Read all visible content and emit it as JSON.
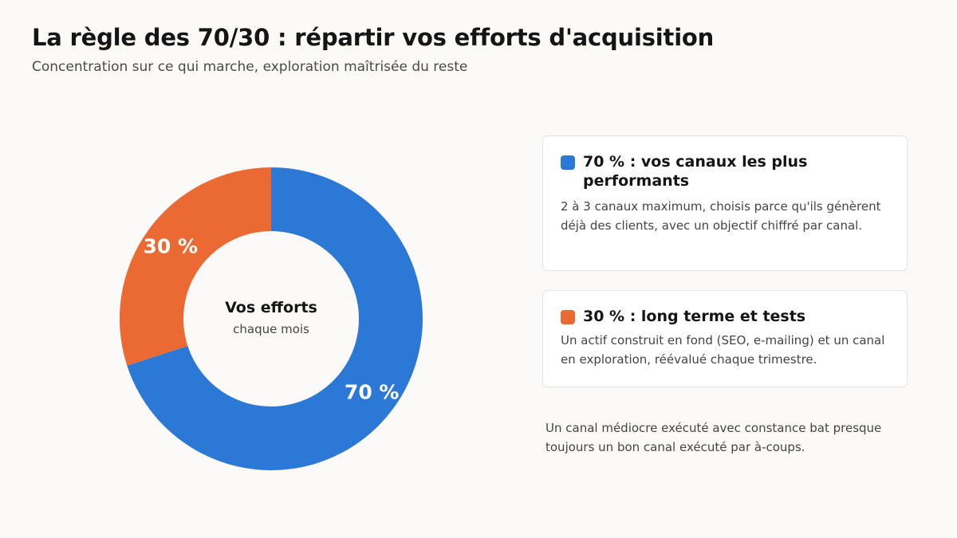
{
  "header": {
    "title": "La règle des 70/30 : répartir vos efforts d'acquisition",
    "subtitle": "Concentration sur ce qui marche, exploration maîtrisée du reste"
  },
  "chart_data": {
    "type": "pie",
    "donut": true,
    "categories": [
      "70 %",
      "30 %"
    ],
    "values": [
      70,
      30
    ],
    "colors": [
      "#2b78d6",
      "#eb6a34"
    ],
    "labels": [
      "70 %",
      "30 %"
    ],
    "center_title": "Vos efforts",
    "center_subtitle": "chaque mois"
  },
  "cards": [
    {
      "color": "#2b78d6",
      "title": "70 % : vos canaux les plus performants",
      "description": "2 à 3 canaux maximum, choisis parce qu'ils génèrent déjà des clients, avec un objectif chiffré par canal."
    },
    {
      "color": "#eb6a34",
      "title": "30 % : long terme et tests",
      "description": "Un actif construit en fond (SEO, e-mailing) et un canal en exploration, réévalué chaque trimestre."
    }
  ],
  "note": "Un canal médiocre exécuté avec constance bat presque toujours un bon canal exécuté par à-coups."
}
